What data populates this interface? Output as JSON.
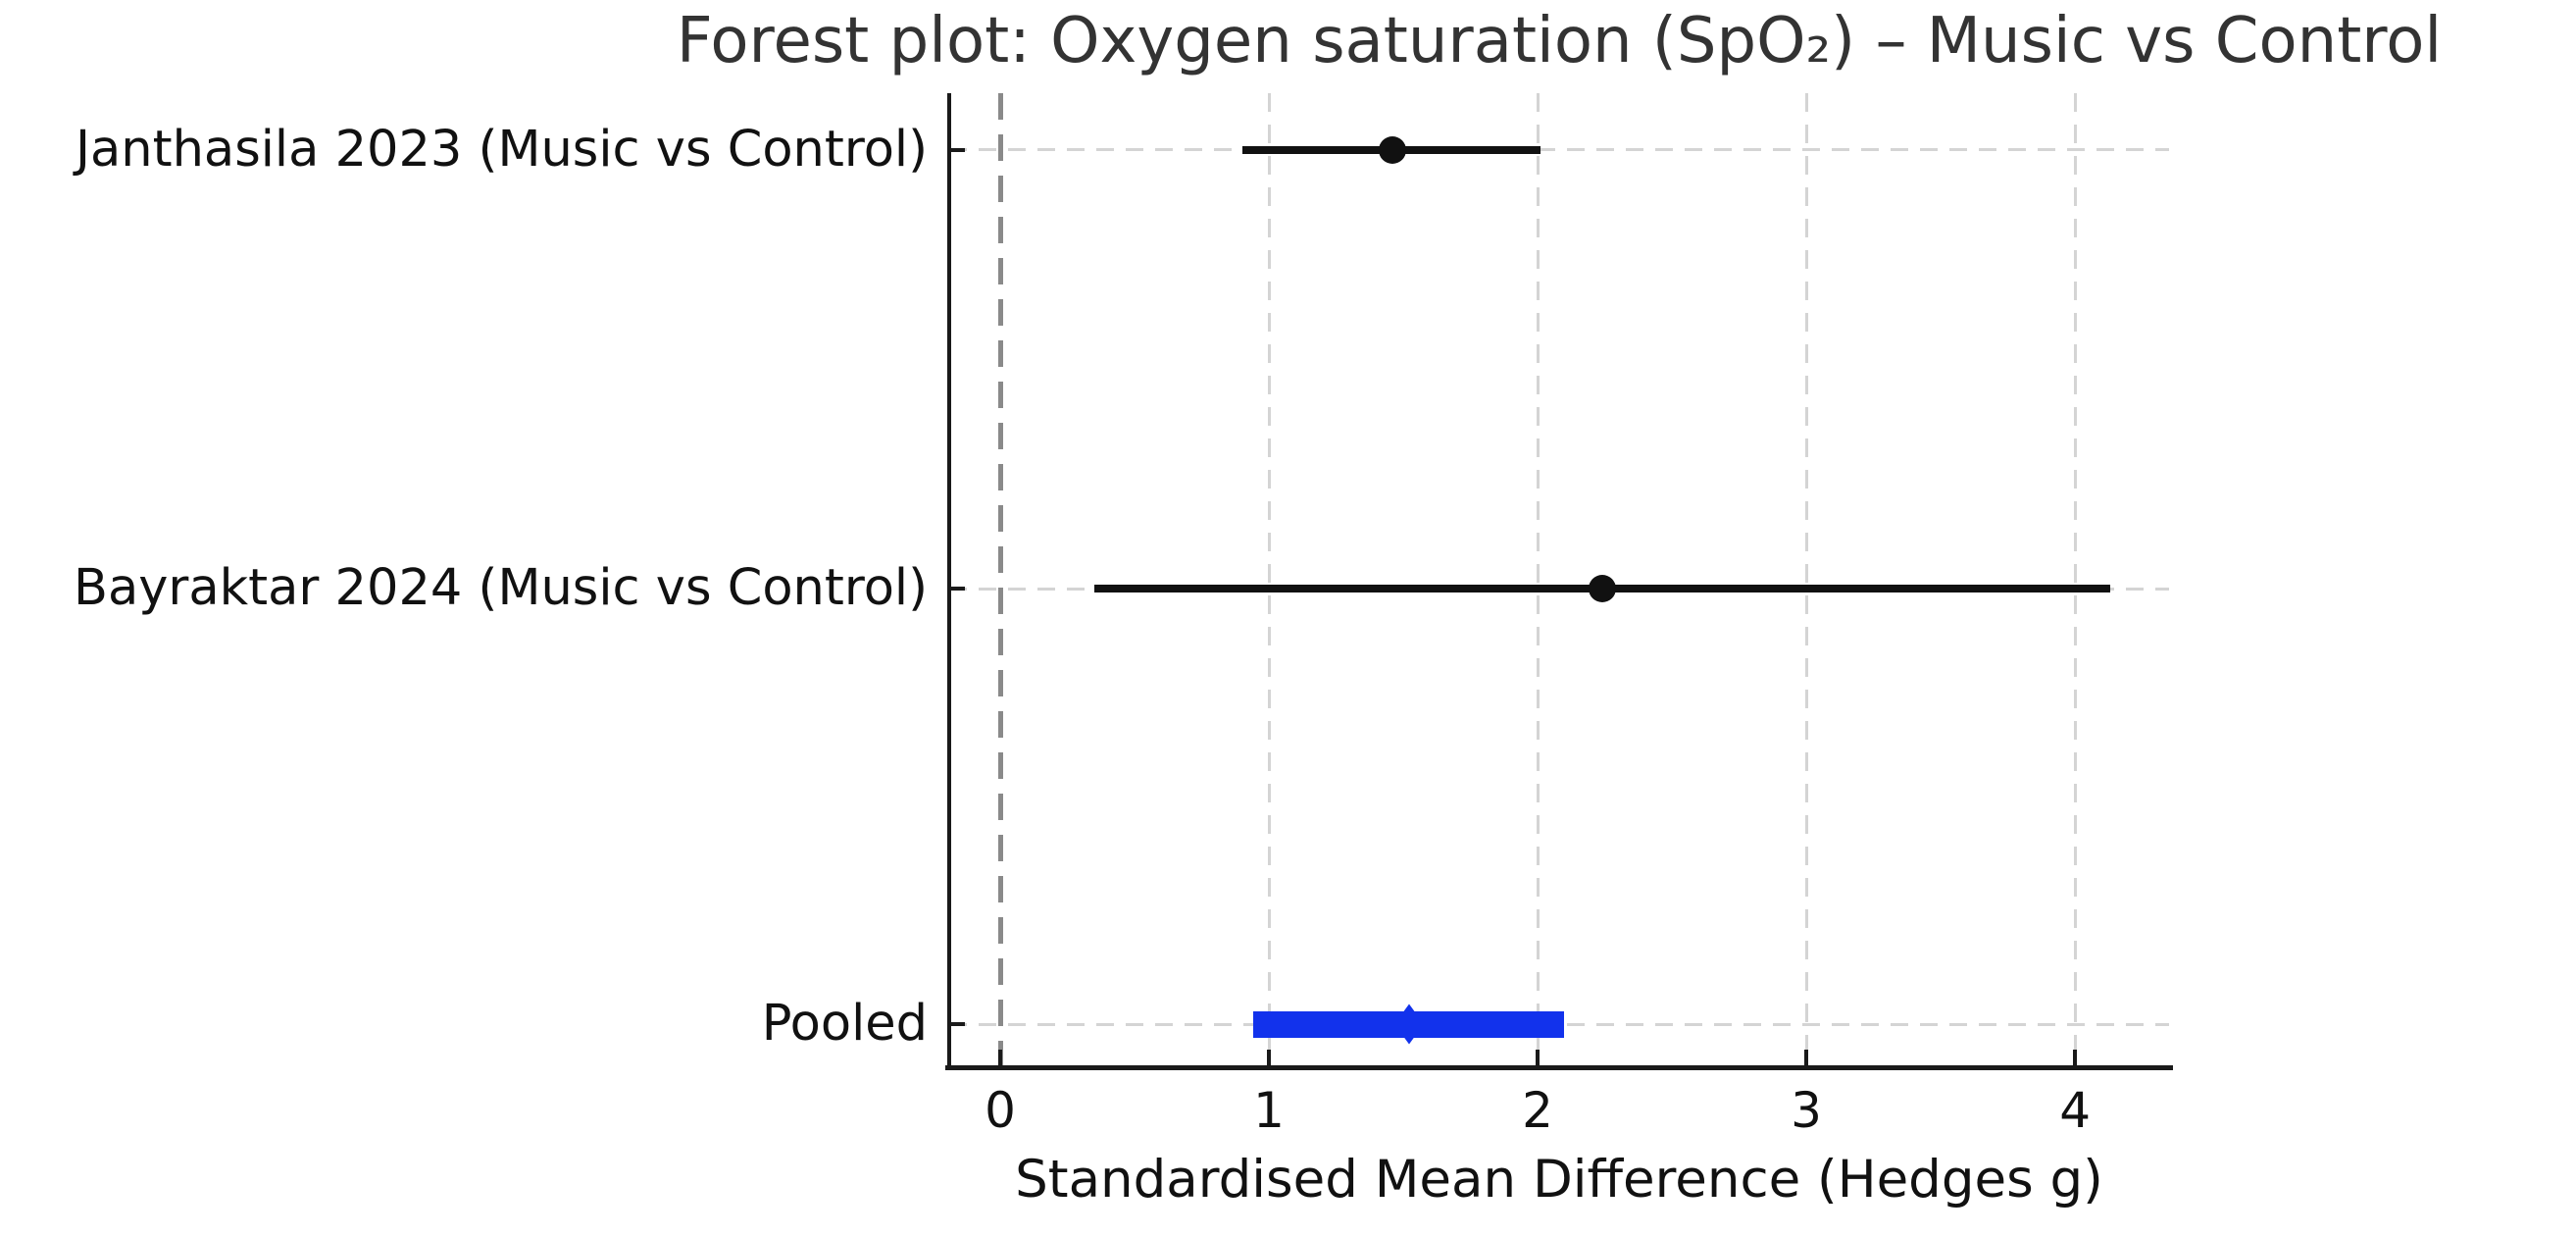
{
  "chart_data": {
    "type": "scatter",
    "subtype": "forest-plot",
    "title": "Forest plot: Oxygen saturation (SpO₂) – Music vs Control",
    "xlabel": "Standardised Mean Difference (Hedges g)",
    "xlim": [
      -0.19,
      4.35
    ],
    "xticks": [
      0,
      1,
      2,
      3,
      4
    ],
    "grid": true,
    "legend": "none",
    "zero_line": {
      "x": 0,
      "style": "dashed",
      "color": "#8a8a8a"
    },
    "rows": [
      {
        "label": "Janthasila 2023 (Music vs Control)",
        "estimate": 1.46,
        "ci_low": 0.9,
        "ci_high": 2.01,
        "kind": "study",
        "marker": "circle",
        "color": "#111111"
      },
      {
        "label": "Bayraktar 2024 (Music vs Control)",
        "estimate": 2.24,
        "ci_low": 0.35,
        "ci_high": 4.13,
        "kind": "study",
        "marker": "circle",
        "color": "#111111"
      },
      {
        "label": "Pooled",
        "estimate": 1.52,
        "ci_low": 0.94,
        "ci_high": 2.1,
        "kind": "pooled",
        "marker": "diamond",
        "color": "#1232ec"
      }
    ],
    "colors": {
      "study": "#111111",
      "pooled": "#1232ec",
      "grid": "#d4d4d4",
      "zero_line": "#8a8a8a",
      "axis": "#1a1a1a"
    }
  }
}
